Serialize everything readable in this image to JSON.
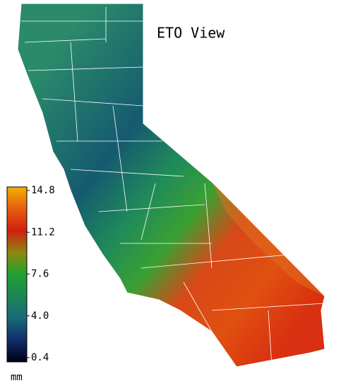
{
  "title": "ETO View",
  "legend": {
    "unit": "mm",
    "ticks": [
      14.8,
      11.2,
      7.6,
      {
        "value": 4,
        "label": "4.0"
      },
      0.4
    ]
  }
}
